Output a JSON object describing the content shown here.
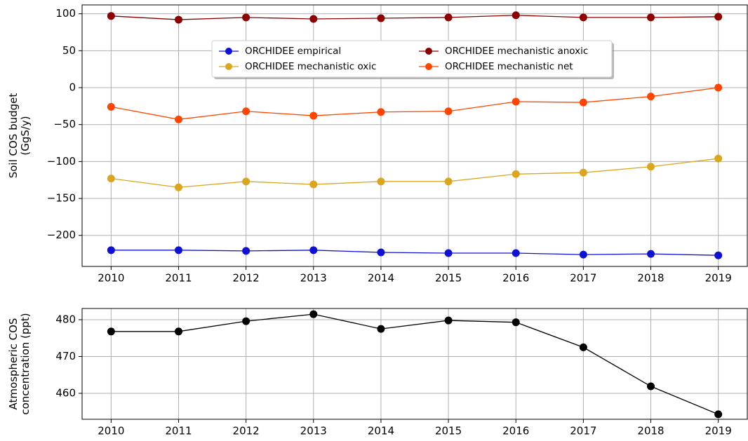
{
  "chart_data": [
    {
      "type": "line",
      "ylabel": [
        "Soil COS budget",
        "(GgS/y)"
      ],
      "x": [
        2010,
        2011,
        2012,
        2013,
        2014,
        2015,
        2016,
        2017,
        2018,
        2019
      ],
      "series": [
        {
          "name": "ORCHIDEE empirical",
          "color": "#1010d0",
          "values": [
            -220,
            -220,
            -221,
            -220,
            -223,
            -224,
            -224,
            -226,
            -225,
            -227
          ]
        },
        {
          "name": "ORCHIDEE mechanistic oxic",
          "color": "#daa520",
          "values": [
            -123,
            -135,
            -127,
            -131,
            -127,
            -127,
            -117,
            -115,
            -107,
            -96
          ]
        },
        {
          "name": "ORCHIDEE mechanistic anoxic",
          "color": "#8b0000",
          "values": [
            97,
            92,
            95,
            93,
            94,
            95,
            98,
            95,
            95,
            96
          ]
        },
        {
          "name": "ORCHIDEE mechanistic net",
          "color": "#ff4500",
          "values": [
            -26,
            -43,
            -32,
            -38,
            -33,
            -32,
            -19,
            -20,
            -12,
            0
          ]
        }
      ],
      "xlim": [
        2009.57,
        2019.43
      ],
      "xticks": [
        2010,
        2011,
        2012,
        2013,
        2014,
        2015,
        2016,
        2017,
        2018,
        2019
      ],
      "ylim": [
        -242,
        112
      ],
      "yticks": [
        {
          "value": -200,
          "label": "−200"
        },
        {
          "value": -150,
          "label": "−150"
        },
        {
          "value": -100,
          "label": "−100"
        },
        {
          "value": -50,
          "label": "−50"
        },
        0,
        50,
        100
      ],
      "grid": true,
      "legend_loc": "upper center",
      "legend_ncol": 2
    },
    {
      "type": "line",
      "ylabel": [
        "Atmospheric COS",
        "concentration (ppt)"
      ],
      "x": [
        2010,
        2011,
        2012,
        2013,
        2014,
        2015,
        2016,
        2017,
        2018,
        2019
      ],
      "values": [
        476.8,
        476.8,
        479.6,
        481.5,
        477.5,
        479.8,
        479.3,
        472.5,
        461.9,
        454.3
      ],
      "color": "#000000",
      "xlim": [
        2009.57,
        2019.43
      ],
      "xticks": [
        2010,
        2011,
        2012,
        2013,
        2014,
        2015,
        2016,
        2017,
        2018,
        2019
      ],
      "ylim": [
        452.95,
        483.05
      ],
      "yticks": [
        460,
        470,
        480
      ],
      "grid": true
    }
  ]
}
